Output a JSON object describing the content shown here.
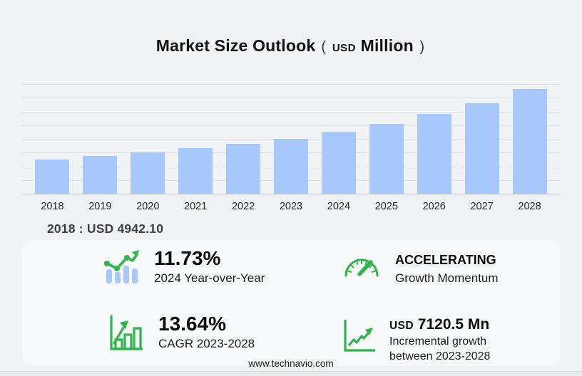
{
  "header": {
    "title": "Market Size Outlook",
    "unit_paren_open": "(",
    "unit_currency": "USD",
    "unit_name": "Million",
    "unit_paren_close": ")"
  },
  "chart_data": {
    "type": "bar",
    "title": "Market Size Outlook (USD Million)",
    "categories": [
      "2018",
      "2019",
      "2020",
      "2021",
      "2022",
      "2023",
      "2024",
      "2025",
      "2026",
      "2027",
      "2028"
    ],
    "values": [
      4942.1,
      5438,
      5926,
      6521,
      7226,
      7951,
      8883.5,
      10023,
      11464,
      13073,
      15071.5
    ],
    "xlabel": "",
    "ylabel": "",
    "ylim": [
      0,
      16200
    ],
    "grid": "horizontal",
    "legend": false,
    "bar_color": "#a8c7fa",
    "notes": "2018 value labeled on image as USD 4942.10; 2028 = 2023 + incremental 7120.5; intermediate values estimated from bar heights"
  },
  "annotation": {
    "text": "2018 : USD  4942.10"
  },
  "stats": [
    {
      "id": "yoy",
      "icon": "trend-bars-icon",
      "value": "11.73%",
      "label": "2024 Year-over-Year"
    },
    {
      "id": "momentum",
      "icon": "speedometer-icon",
      "value": "ACCELERATING",
      "label": "Growth Momentum"
    },
    {
      "id": "cagr",
      "icon": "bar-arrow-icon",
      "value": "13.64%",
      "label": "CAGR 2023-2028"
    },
    {
      "id": "incremental",
      "icon": "line-growth-icon",
      "currency": "USD",
      "value": "7120.5 Mn",
      "label_line1": "Incremental growth",
      "label_line2": "between 2023-2028"
    }
  ],
  "footer": {
    "url": "www.technavio.com"
  },
  "colors": {
    "background": "#f1f2f4",
    "panel": "#f7f8fa",
    "bar": "#a8c7fa",
    "gridline": "#dedfe1",
    "axis": "#c0c1c3",
    "accent_green": "#2fb54a",
    "text_dark": "#131313"
  }
}
